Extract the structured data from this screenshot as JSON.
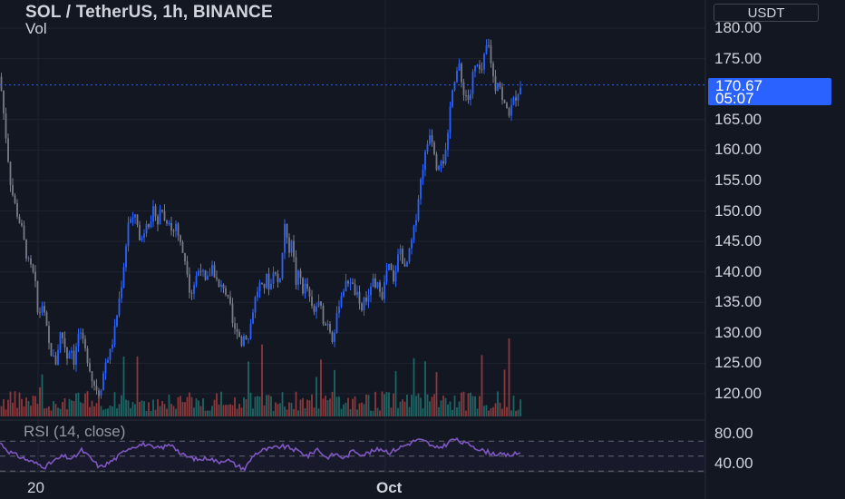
{
  "header": {
    "title": "SOL / TetherUS, 1h, BINANCE",
    "volume_label": "Vol",
    "currency_button": "USDT",
    "rsi_label": "RSI (14, close)"
  },
  "last_price": {
    "value": "170.67",
    "countdown": "05:07"
  },
  "colors": {
    "background": "#131722",
    "up": "#2962ff",
    "down": "#787b86",
    "volume_up": "#26a69a",
    "volume_down": "#ef5350",
    "rsi_line": "#7e57c2",
    "price_tag": "#2962ff"
  },
  "chart_data": [
    {
      "type": "candlestick",
      "title": "SOL / TetherUS, 1h, BINANCE",
      "y_axis_labels": [
        "180.00",
        "175.00",
        "165.00",
        "160.00",
        "155.00",
        "150.00",
        "145.00",
        "140.00",
        "135.00",
        "130.00",
        "125.00",
        "120.00"
      ],
      "ylim": [
        117.5,
        182
      ],
      "x_axis_labels": [
        "20",
        "Oct"
      ],
      "grid": true,
      "last_close": 170.67,
      "close_path": [
        [
          0,
          172
        ],
        [
          6,
          163
        ],
        [
          12,
          154
        ],
        [
          18,
          150
        ],
        [
          24,
          147
        ],
        [
          30,
          142
        ],
        [
          36,
          140
        ],
        [
          40,
          137
        ],
        [
          42,
          132
        ],
        [
          46,
          135
        ],
        [
          50,
          132
        ],
        [
          54,
          128
        ],
        [
          58,
          126
        ],
        [
          62,
          125
        ],
        [
          66,
          130
        ],
        [
          70,
          129
        ],
        [
          74,
          126
        ],
        [
          78,
          128
        ],
        [
          82,
          125
        ],
        [
          86,
          130
        ],
        [
          90,
          129
        ],
        [
          94,
          127
        ],
        [
          98,
          125
        ],
        [
          102,
          122
        ],
        [
          106,
          121
        ],
        [
          110,
          120
        ],
        [
          116,
          125
        ],
        [
          122,
          127
        ],
        [
          126,
          130
        ],
        [
          130,
          134
        ],
        [
          134,
          138
        ],
        [
          138,
          143
        ],
        [
          142,
          149
        ],
        [
          146,
          148
        ],
        [
          150,
          150
        ],
        [
          154,
          145
        ],
        [
          158,
          146
        ],
        [
          162,
          149
        ],
        [
          166,
          147
        ],
        [
          170,
          151
        ],
        [
          174,
          148
        ],
        [
          178,
          151
        ],
        [
          182,
          148
        ],
        [
          186,
          149
        ],
        [
          190,
          146
        ],
        [
          194,
          148
        ],
        [
          198,
          145
        ],
        [
          202,
          143
        ],
        [
          206,
          141
        ],
        [
          210,
          136
        ],
        [
          214,
          138
        ],
        [
          218,
          140
        ],
        [
          222,
          141
        ],
        [
          226,
          138
        ],
        [
          230,
          139
        ],
        [
          234,
          141
        ],
        [
          238,
          139
        ],
        [
          242,
          137
        ],
        [
          246,
          138
        ],
        [
          250,
          136
        ],
        [
          254,
          134
        ],
        [
          258,
          130
        ],
        [
          262,
          131
        ],
        [
          266,
          128
        ],
        [
          270,
          130
        ],
        [
          274,
          129
        ],
        [
          278,
          133
        ],
        [
          282,
          136
        ],
        [
          286,
          138
        ],
        [
          290,
          137
        ],
        [
          294,
          139
        ],
        [
          298,
          137
        ],
        [
          302,
          141
        ],
        [
          306,
          138
        ],
        [
          310,
          140
        ],
        [
          314,
          148
        ],
        [
          318,
          143
        ],
        [
          322,
          146
        ],
        [
          326,
          138
        ],
        [
          330,
          140
        ],
        [
          334,
          137
        ],
        [
          338,
          138
        ],
        [
          342,
          135
        ],
        [
          346,
          133
        ],
        [
          350,
          135
        ],
        [
          354,
          134
        ],
        [
          358,
          131
        ],
        [
          362,
          132
        ],
        [
          366,
          129
        ],
        [
          370,
          131
        ],
        [
          374,
          135
        ],
        [
          378,
          137
        ],
        [
          382,
          138
        ],
        [
          386,
          139
        ],
        [
          390,
          137
        ],
        [
          394,
          136
        ],
        [
          398,
          133
        ],
        [
          402,
          136
        ],
        [
          406,
          135
        ],
        [
          410,
          139
        ],
        [
          414,
          137
        ],
        [
          418,
          138
        ],
        [
          422,
          136
        ],
        [
          426,
          140
        ],
        [
          430,
          141
        ],
        [
          434,
          138
        ],
        [
          438,
          142
        ],
        [
          442,
          144
        ],
        [
          446,
          140
        ],
        [
          450,
          142
        ],
        [
          454,
          145
        ],
        [
          458,
          148
        ],
        [
          462,
          153
        ],
        [
          466,
          157
        ],
        [
          470,
          160
        ],
        [
          474,
          163
        ],
        [
          478,
          161
        ],
        [
          482,
          157
        ],
        [
          486,
          159
        ],
        [
          490,
          158
        ],
        [
          494,
          162
        ],
        [
          498,
          170
        ],
        [
          502,
          172
        ],
        [
          506,
          174
        ],
        [
          510,
          170
        ],
        [
          514,
          169
        ],
        [
          518,
          168
        ],
        [
          522,
          173
        ],
        [
          526,
          174
        ],
        [
          530,
          172
        ],
        [
          534,
          175
        ],
        [
          538,
          178
        ],
        [
          542,
          174
        ],
        [
          546,
          170
        ],
        [
          550,
          172
        ],
        [
          554,
          168
        ],
        [
          558,
          167
        ],
        [
          562,
          166
        ],
        [
          566,
          168
        ],
        [
          570,
          169
        ],
        [
          574,
          170.67
        ]
      ],
      "rsi_levels": [
        "80.00",
        "40.00"
      ],
      "rsi_path": [
        [
          0,
          68
        ],
        [
          10,
          56
        ],
        [
          20,
          50
        ],
        [
          30,
          45
        ],
        [
          40,
          40
        ],
        [
          50,
          36
        ],
        [
          60,
          44
        ],
        [
          70,
          50
        ],
        [
          80,
          46
        ],
        [
          90,
          58
        ],
        [
          100,
          47
        ],
        [
          110,
          35
        ],
        [
          120,
          41
        ],
        [
          130,
          49
        ],
        [
          140,
          60
        ],
        [
          150,
          64
        ],
        [
          160,
          66
        ],
        [
          170,
          60
        ],
        [
          180,
          62
        ],
        [
          190,
          66
        ],
        [
          200,
          52
        ],
        [
          210,
          48
        ],
        [
          220,
          45
        ],
        [
          230,
          48
        ],
        [
          240,
          42
        ],
        [
          250,
          46
        ],
        [
          260,
          38
        ],
        [
          270,
          33
        ],
        [
          280,
          52
        ],
        [
          290,
          58
        ],
        [
          300,
          60
        ],
        [
          310,
          63
        ],
        [
          320,
          61
        ],
        [
          330,
          56
        ],
        [
          340,
          50
        ],
        [
          350,
          60
        ],
        [
          360,
          48
        ],
        [
          370,
          53
        ],
        [
          380,
          47
        ],
        [
          390,
          58
        ],
        [
          400,
          52
        ],
        [
          410,
          56
        ],
        [
          420,
          60
        ],
        [
          430,
          55
        ],
        [
          440,
          61
        ],
        [
          450,
          66
        ],
        [
          460,
          72
        ],
        [
          470,
          69
        ],
        [
          480,
          60
        ],
        [
          490,
          64
        ],
        [
          500,
          73
        ],
        [
          510,
          68
        ],
        [
          520,
          65
        ],
        [
          530,
          58
        ],
        [
          540,
          55
        ],
        [
          550,
          52
        ],
        [
          560,
          51
        ],
        [
          570,
          53
        ],
        [
          575,
          55
        ]
      ]
    }
  ]
}
